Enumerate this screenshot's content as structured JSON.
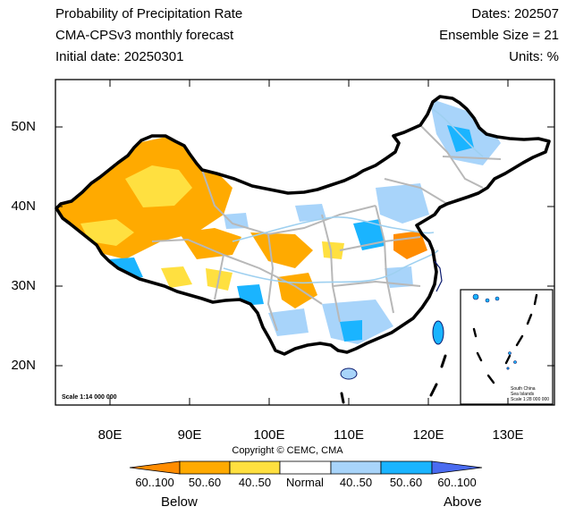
{
  "header": {
    "title": "Probability of Precipitation Rate",
    "model": "CMA-CPSv3 monthly forecast",
    "initial_date": "Initial date: 20250301",
    "dates": "Dates: 202507",
    "ensemble": "Ensemble Size = 21",
    "units": "Units: %"
  },
  "axes": {
    "lat_ticks": [
      "50N",
      "40N",
      "30N",
      "20N"
    ],
    "lon_ticks": [
      "80E",
      "90E",
      "100E",
      "110E",
      "120E",
      "130E"
    ]
  },
  "map": {
    "scale_note": "Scale 1:14 000 000",
    "inset_line1": "South China",
    "inset_line2": "Sea Islands",
    "inset_line3": "Scale 1:28 000 000"
  },
  "copyright": "Copyright © CEMC, CMA",
  "colorbar": {
    "labels": [
      "60..100",
      "50..60",
      "40..50",
      "Normal",
      "40..50",
      "50..60",
      "60..100"
    ],
    "colors": [
      "#ff8c00",
      "#ffaa00",
      "#ffe040",
      "#ffffff",
      "#a8d4fa",
      "#1ab4ff",
      "#4a6bf0"
    ],
    "below": "Below",
    "above": "Above"
  }
}
